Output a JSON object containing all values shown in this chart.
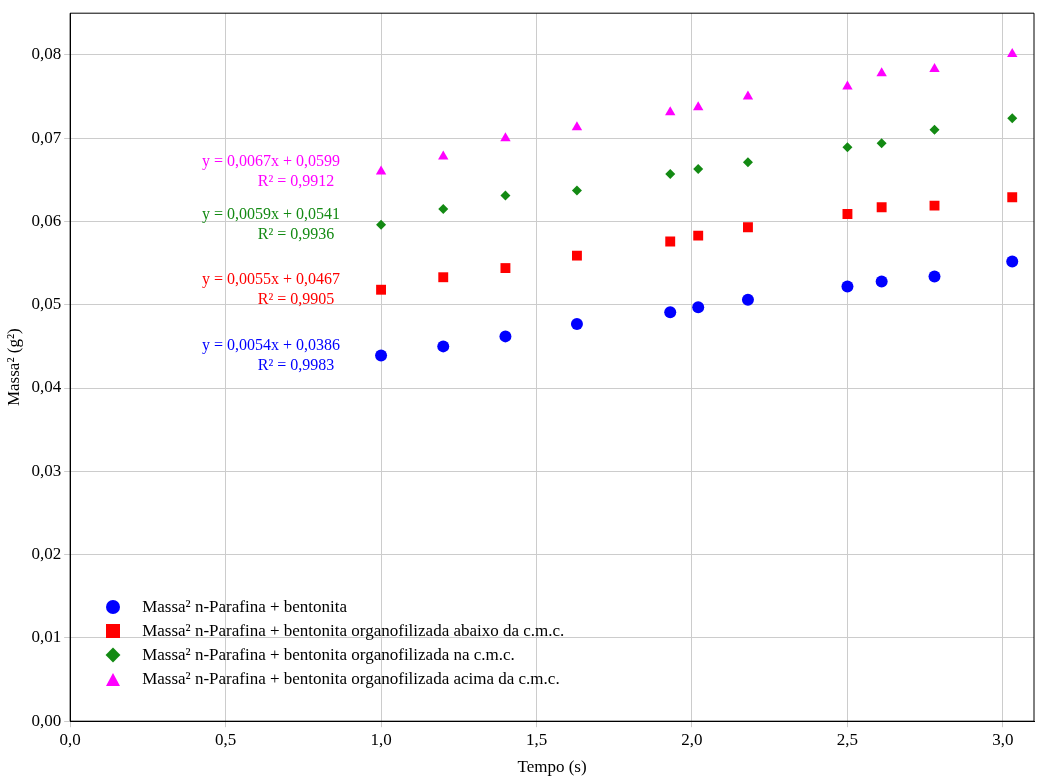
{
  "chart_data": {
    "type": "scatter",
    "xlabel": "Tempo (s)",
    "ylabel": "Massa² (g²)",
    "x": [
      1.0,
      1.2,
      1.4,
      1.63,
      1.93,
      2.02,
      2.18,
      2.5,
      2.61,
      2.78,
      3.03
    ],
    "series": [
      {
        "name": "Massa² n-Parafina + bentonita",
        "color": "#0000ff",
        "marker": "circle",
        "values": [
          0.0439,
          0.045,
          0.0462,
          0.0477,
          0.0491,
          0.0497,
          0.0506,
          0.0522,
          0.0528,
          0.0534,
          0.0552
        ]
      },
      {
        "name": "Massa² n-Parafina + bentonita organofilizada abaixo da c.m.c.",
        "color": "#ff0000",
        "marker": "square",
        "values": [
          0.0518,
          0.0533,
          0.0544,
          0.0559,
          0.0576,
          0.0583,
          0.0593,
          0.0609,
          0.0617,
          0.0619,
          0.0629
        ]
      },
      {
        "name": "Massa² n-Parafina + bentonita organofilizada na c.m.c.",
        "color": "#138a13",
        "marker": "diamond",
        "values": [
          0.0596,
          0.0615,
          0.0631,
          0.0637,
          0.0657,
          0.0663,
          0.0671,
          0.0689,
          0.0694,
          0.071,
          0.0724
        ]
      },
      {
        "name": "Massa² n-Parafina + bentonita organofilizada acima da c.m.c.",
        "color": "#ff00ff",
        "marker": "triangle",
        "values": [
          0.066,
          0.0678,
          0.07,
          0.0713,
          0.0731,
          0.0737,
          0.075,
          0.0762,
          0.0778,
          0.0783,
          0.0801
        ]
      }
    ],
    "annotations": [
      "y = 0,0054x + 0,0386\nR² = 0,9983",
      "y = 0,0055x + 0,0467\nR² = 0,9905",
      "y = 0,0059x + 0,0541\nR² = 0,9936",
      "y = 0,0067x + 0,0599\nR² = 0,9912"
    ],
    "xlim": [
      0,
      3.1
    ],
    "xticks": [
      {
        "value": 0,
        "label": "0,0"
      },
      {
        "value": 0.5,
        "label": "0,5"
      },
      {
        "value": 1,
        "label": "1,0"
      },
      {
        "value": 1.5,
        "label": "1,5"
      },
      {
        "value": 2,
        "label": "2,0"
      },
      {
        "value": 2.5,
        "label": "2,5"
      },
      {
        "value": 3,
        "label": "3,0"
      }
    ],
    "ylim": [
      0,
      0.085
    ],
    "yticks": [
      {
        "value": 0,
        "label": "0,00"
      },
      {
        "value": 0.01,
        "label": "0,01"
      },
      {
        "value": 0.02,
        "label": "0,02"
      },
      {
        "value": 0.03,
        "label": "0,03"
      },
      {
        "value": 0.04,
        "label": "0,04"
      },
      {
        "value": 0.05,
        "label": "0,05"
      },
      {
        "value": 0.06,
        "label": "0,06"
      },
      {
        "value": 0.07,
        "label": "0,07"
      },
      {
        "value": 0.08,
        "label": "0,08"
      }
    ],
    "grid": true,
    "legend": "bottom left"
  }
}
